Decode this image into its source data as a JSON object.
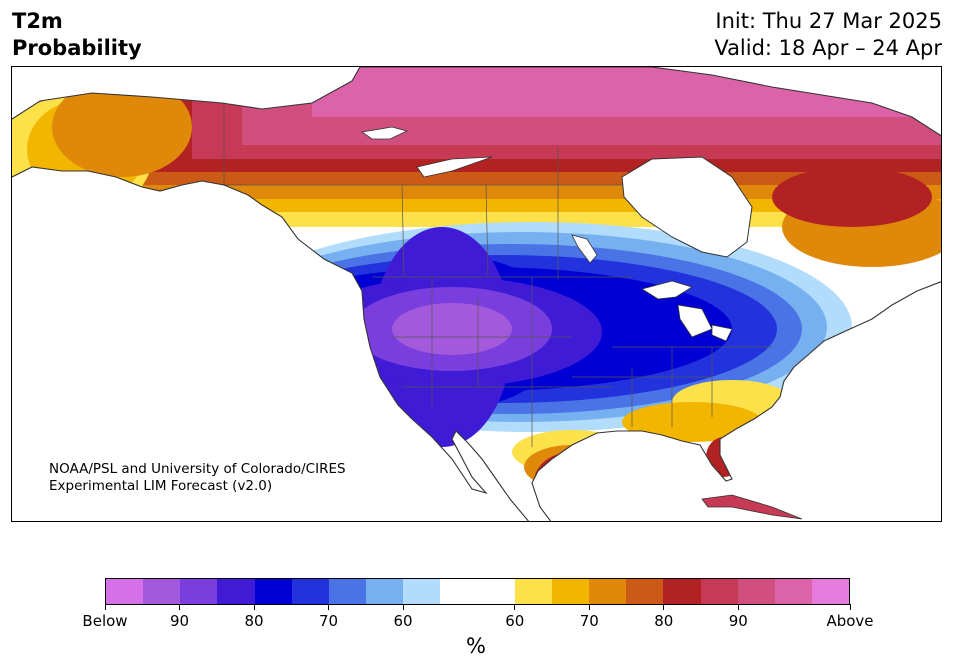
{
  "header": {
    "variable_line1": "T2m",
    "variable_line2": "Probability",
    "init": "Init: Thu 27 Mar 2025",
    "valid": "Valid: 18 Apr – 24 Apr"
  },
  "credit": {
    "line1": "NOAA/PSL and University of Colorado/CIRES",
    "line2": "Experimental LIM Forecast (v2.0)"
  },
  "colorbar": {
    "colors": [
      "#d670e8",
      "#a259dc",
      "#7a3ede",
      "#3f1bd6",
      "#0000d4",
      "#2233de",
      "#4a73e6",
      "#77b0f0",
      "#b1dcfb",
      "#ffffff",
      "#ffffff",
      "#fde14a",
      "#f3b600",
      "#e0880a",
      "#cc5a17",
      "#b22222",
      "#c63a55",
      "#d14f7f",
      "#dc62aa",
      "#e47bdd"
    ],
    "tick_labels": [
      "Below",
      "90",
      "80",
      "70",
      "60",
      "60",
      "70",
      "80",
      "90",
      "Above"
    ],
    "unit": "%"
  },
  "map": {
    "region": "North America",
    "cold_anomaly_region": "western and central United States, Great Lakes",
    "warm_anomaly_region": "northern Canada, Alaska, Gulf Coast, Mexico, Florida"
  }
}
